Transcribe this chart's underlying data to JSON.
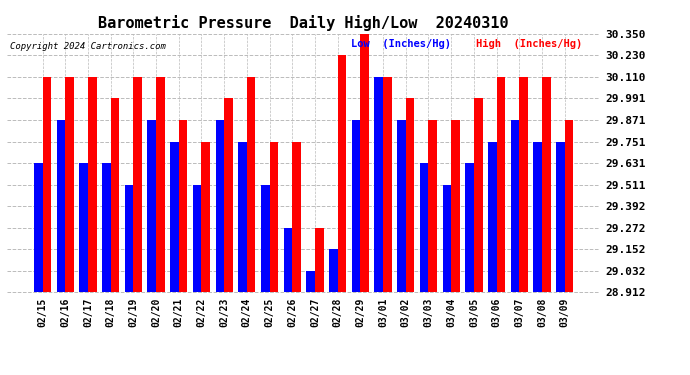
{
  "title": "Barometric Pressure  Daily High/Low  20240310",
  "copyright": "Copyright 2024 Cartronics.com",
  "dates": [
    "02/15",
    "02/16",
    "02/17",
    "02/18",
    "02/19",
    "02/20",
    "02/21",
    "02/22",
    "02/23",
    "02/24",
    "02/25",
    "02/26",
    "02/27",
    "02/28",
    "02/29",
    "03/01",
    "03/02",
    "03/03",
    "03/04",
    "03/05",
    "03/06",
    "03/07",
    "03/08",
    "03/09"
  ],
  "low_values": [
    29.631,
    29.871,
    29.631,
    29.631,
    29.511,
    29.871,
    29.751,
    29.511,
    29.871,
    29.751,
    29.511,
    29.272,
    29.032,
    29.152,
    29.871,
    30.11,
    29.871,
    29.631,
    29.511,
    29.631,
    29.751,
    29.871,
    29.751,
    29.751
  ],
  "high_values": [
    30.11,
    30.11,
    30.11,
    29.991,
    30.11,
    30.11,
    29.871,
    29.751,
    29.991,
    30.11,
    29.751,
    29.751,
    29.272,
    30.23,
    30.35,
    30.11,
    29.991,
    29.871,
    29.871,
    29.991,
    30.11,
    30.11,
    30.11,
    29.871
  ],
  "low_color": "#0000ff",
  "high_color": "#ff0000",
  "bg_color": "#ffffff",
  "ylim_min": 28.912,
  "ylim_max": 30.35,
  "yticks": [
    28.912,
    29.032,
    29.152,
    29.272,
    29.392,
    29.511,
    29.631,
    29.751,
    29.871,
    29.991,
    30.11,
    30.23,
    30.35
  ],
  "grid_color": "#bbbbbb",
  "title_fontsize": 11,
  "tick_fontsize": 7,
  "ytick_fontsize": 8,
  "legend_low_label": "Low  (Inches/Hg)",
  "legend_high_label": "High  (Inches/Hg)",
  "bar_width": 0.38
}
